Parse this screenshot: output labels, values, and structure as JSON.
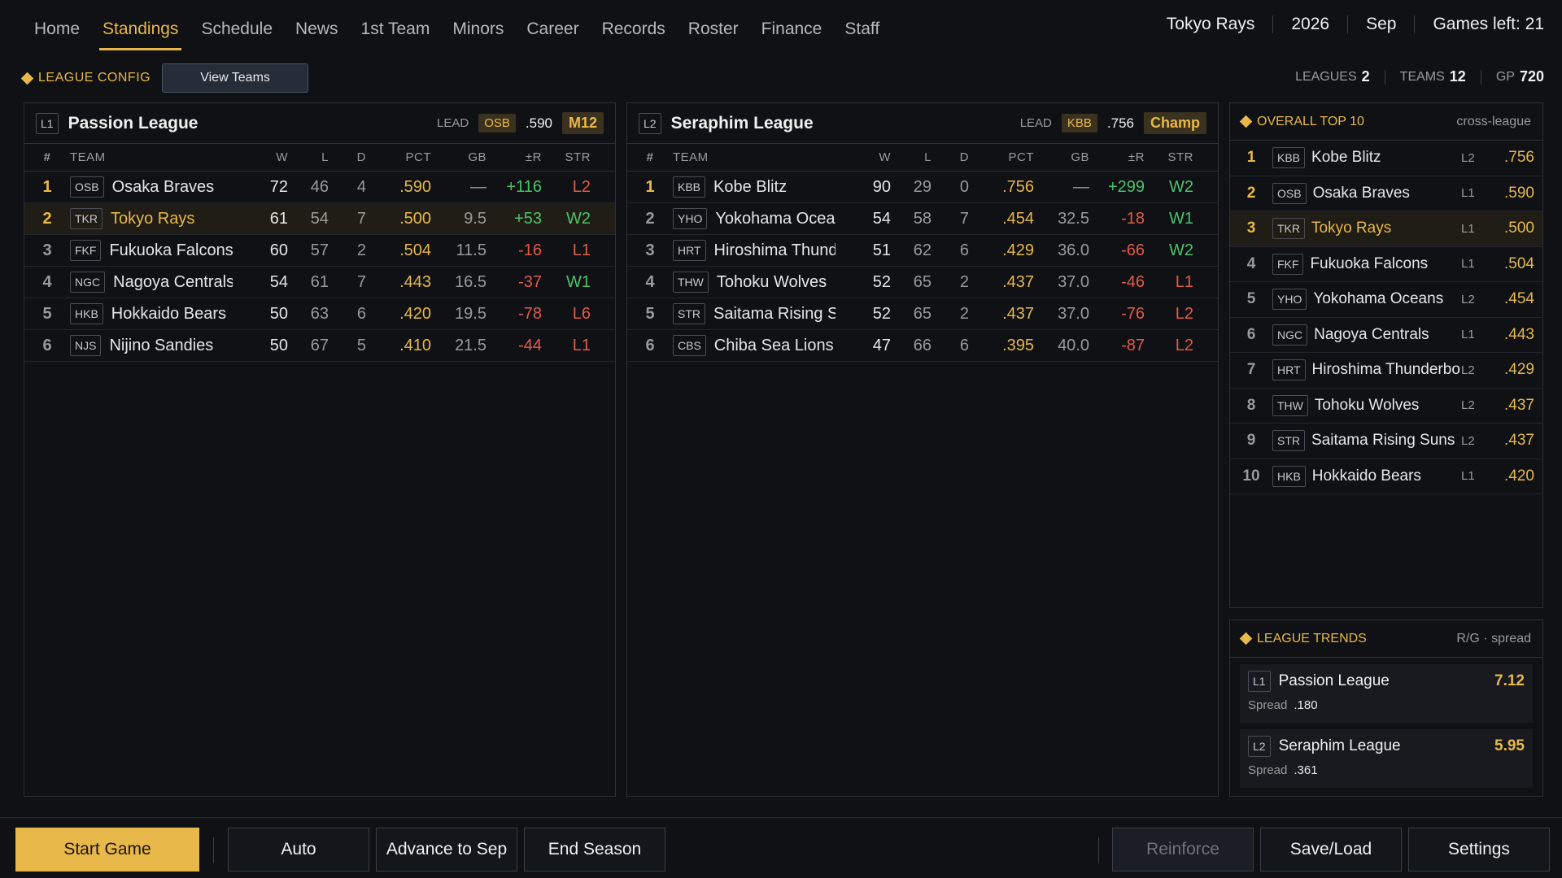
{
  "nav": {
    "tabs": [
      "Home",
      "Standings",
      "Schedule",
      "News",
      "1st Team",
      "Minors",
      "Career",
      "Records",
      "Roster",
      "Finance",
      "Staff"
    ],
    "active": "Standings"
  },
  "status": {
    "team": "Tokyo Rays",
    "year": "2026",
    "month": "Sep",
    "games_left": "Games left: 21"
  },
  "subbar": {
    "config_label": "LEAGUE CONFIG",
    "view_teams": "View Teams"
  },
  "stats": {
    "leagues_label": "LEAGUES",
    "leagues": "2",
    "teams_label": "TEAMS",
    "teams": "12",
    "gp_label": "GP",
    "gp": "720"
  },
  "columns": {
    "rank": "#",
    "team": "TEAM",
    "w": "W",
    "l": "L",
    "d": "D",
    "pct": "PCT",
    "gb": "GB",
    "r": "±R",
    "str": "STR"
  },
  "leagues": [
    {
      "code": "L1",
      "name": "Passion League",
      "lead_label": "LEAD",
      "lead_code": "OSB",
      "lead_pct": ".590",
      "lead_tag": "M12",
      "rows": [
        {
          "rank": "1",
          "code": "OSB",
          "team": "Osaka Braves",
          "w": "72",
          "l": "46",
          "d": "4",
          "pct": ".590",
          "gb": "—",
          "r": "+116",
          "str": "L2",
          "highlight": false
        },
        {
          "rank": "2",
          "code": "TKR",
          "team": "Tokyo Rays",
          "w": "61",
          "l": "54",
          "d": "7",
          "pct": ".500",
          "gb": "9.5",
          "r": "+53",
          "str": "W2",
          "highlight": true
        },
        {
          "rank": "3",
          "code": "FKF",
          "team": "Fukuoka Falcons",
          "w": "60",
          "l": "57",
          "d": "2",
          "pct": ".504",
          "gb": "11.5",
          "r": "-16",
          "str": "L1",
          "highlight": false
        },
        {
          "rank": "4",
          "code": "NGC",
          "team": "Nagoya Centrals",
          "w": "54",
          "l": "61",
          "d": "7",
          "pct": ".443",
          "gb": "16.5",
          "r": "-37",
          "str": "W1",
          "highlight": false
        },
        {
          "rank": "5",
          "code": "HKB",
          "team": "Hokkaido Bears",
          "w": "50",
          "l": "63",
          "d": "6",
          "pct": ".420",
          "gb": "19.5",
          "r": "-78",
          "str": "L6",
          "highlight": false
        },
        {
          "rank": "6",
          "code": "NJS",
          "team": "Nijino Sandies",
          "w": "50",
          "l": "67",
          "d": "5",
          "pct": ".410",
          "gb": "21.5",
          "r": "-44",
          "str": "L1",
          "highlight": false
        }
      ]
    },
    {
      "code": "L2",
      "name": "Seraphim League",
      "lead_label": "LEAD",
      "lead_code": "KBB",
      "lead_pct": ".756",
      "lead_tag": "Champ",
      "rows": [
        {
          "rank": "1",
          "code": "KBB",
          "team": "Kobe Blitz",
          "w": "90",
          "l": "29",
          "d": "0",
          "pct": ".756",
          "gb": "—",
          "r": "+299",
          "str": "W2",
          "highlight": false
        },
        {
          "rank": "2",
          "code": "YHO",
          "team": "Yokohama Oceans",
          "w": "54",
          "l": "58",
          "d": "7",
          "pct": ".454",
          "gb": "32.5",
          "r": "-18",
          "str": "W1",
          "highlight": false
        },
        {
          "rank": "3",
          "code": "HRT",
          "team": "Hiroshima Thunderbolts",
          "w": "51",
          "l": "62",
          "d": "6",
          "pct": ".429",
          "gb": "36.0",
          "r": "-66",
          "str": "W2",
          "highlight": false
        },
        {
          "rank": "4",
          "code": "THW",
          "team": "Tohoku Wolves",
          "w": "52",
          "l": "65",
          "d": "2",
          "pct": ".437",
          "gb": "37.0",
          "r": "-46",
          "str": "L1",
          "highlight": false
        },
        {
          "rank": "5",
          "code": "STR",
          "team": "Saitama Rising Suns",
          "w": "52",
          "l": "65",
          "d": "2",
          "pct": ".437",
          "gb": "37.0",
          "r": "-76",
          "str": "L2",
          "highlight": false
        },
        {
          "rank": "6",
          "code": "CBS",
          "team": "Chiba Sea Lions",
          "w": "47",
          "l": "66",
          "d": "6",
          "pct": ".395",
          "gb": "40.0",
          "r": "-87",
          "str": "L2",
          "highlight": false
        }
      ]
    }
  ],
  "top10": {
    "title": "OVERALL TOP 10",
    "note": "cross-league",
    "rows": [
      {
        "rank": "1",
        "code": "KBB",
        "team": "Kobe Blitz",
        "lg": "L2",
        "pct": ".756",
        "highlight": false
      },
      {
        "rank": "2",
        "code": "OSB",
        "team": "Osaka Braves",
        "lg": "L1",
        "pct": ".590",
        "highlight": false
      },
      {
        "rank": "3",
        "code": "TKR",
        "team": "Tokyo Rays",
        "lg": "L1",
        "pct": ".500",
        "highlight": true
      },
      {
        "rank": "4",
        "code": "FKF",
        "team": "Fukuoka Falcons",
        "lg": "L1",
        "pct": ".504",
        "highlight": false
      },
      {
        "rank": "5",
        "code": "YHO",
        "team": "Yokohama Oceans",
        "lg": "L2",
        "pct": ".454",
        "highlight": false
      },
      {
        "rank": "6",
        "code": "NGC",
        "team": "Nagoya Centrals",
        "lg": "L1",
        "pct": ".443",
        "highlight": false
      },
      {
        "rank": "7",
        "code": "HRT",
        "team": "Hiroshima Thunderbolts",
        "lg": "L2",
        "pct": ".429",
        "highlight": false
      },
      {
        "rank": "8",
        "code": "THW",
        "team": "Tohoku Wolves",
        "lg": "L2",
        "pct": ".437",
        "highlight": false
      },
      {
        "rank": "9",
        "code": "STR",
        "team": "Saitama Rising Suns",
        "lg": "L2",
        "pct": ".437",
        "highlight": false
      },
      {
        "rank": "10",
        "code": "HKB",
        "team": "Hokkaido Bears",
        "lg": "L1",
        "pct": ".420",
        "highlight": false
      }
    ]
  },
  "trends": {
    "title": "LEAGUE TRENDS",
    "note": "R/G · spread",
    "spread_label": "Spread",
    "items": [
      {
        "code": "L1",
        "name": "Passion League",
        "rg": "7.12",
        "spread": ".180"
      },
      {
        "code": "L2",
        "name": "Seraphim League",
        "rg": "5.95",
        "spread": ".361"
      }
    ]
  },
  "buttons": {
    "start": "Start Game",
    "auto": "Auto",
    "advance": "Advance to Sep",
    "end": "End Season",
    "reinforce": "Reinforce",
    "save": "Save/Load",
    "settings": "Settings"
  },
  "colors": {
    "accent": "#e8b84a",
    "positive": "#4cc36a",
    "negative": "#e25a4a"
  }
}
